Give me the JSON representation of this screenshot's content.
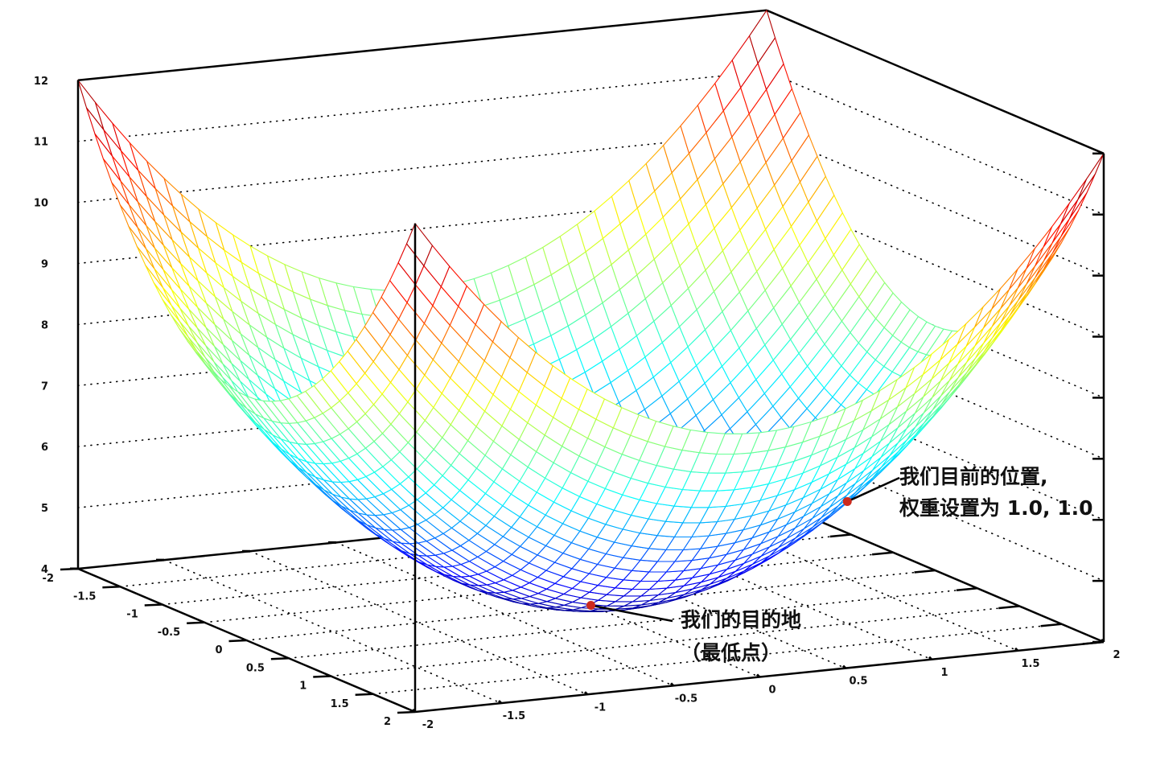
{
  "chart_data": {
    "type": "surface",
    "surface": {
      "z_equation": "z = x^2 + y^2 + 4",
      "coeff_x2": 1,
      "coeff_y2": 1,
      "offset": 4,
      "mesh_step": 0.1
    },
    "xlim": [
      -2,
      2
    ],
    "ylim": [
      -2,
      2
    ],
    "zlim": [
      4,
      12
    ],
    "x_ticks": [
      "-2",
      "-1.5",
      "-1",
      "-0.5",
      "0",
      "0.5",
      "1",
      "1.5",
      "2"
    ],
    "y_ticks": [
      "-2",
      "-1.5",
      "-1",
      "-0.5",
      "0",
      "0.5",
      "1",
      "1.5",
      "2"
    ],
    "z_ticks": [
      "4",
      "5",
      "6",
      "7",
      "8",
      "9",
      "10",
      "11",
      "12"
    ],
    "colormap": "jet (blue at z=4 to red at z=12)",
    "grid": true,
    "annotations": [
      {
        "lines": [
          "我们目前的位置,",
          "权重设置为 1.0, 1.0"
        ],
        "point": {
          "x": 1,
          "y": 1,
          "z": 6
        },
        "color": "#cc2a1e"
      },
      {
        "lines": [
          "我们的目的地",
          "（最低点）"
        ],
        "point": {
          "x": 0,
          "y": 0,
          "z": 4
        },
        "color": "#cc2a1e"
      }
    ]
  }
}
